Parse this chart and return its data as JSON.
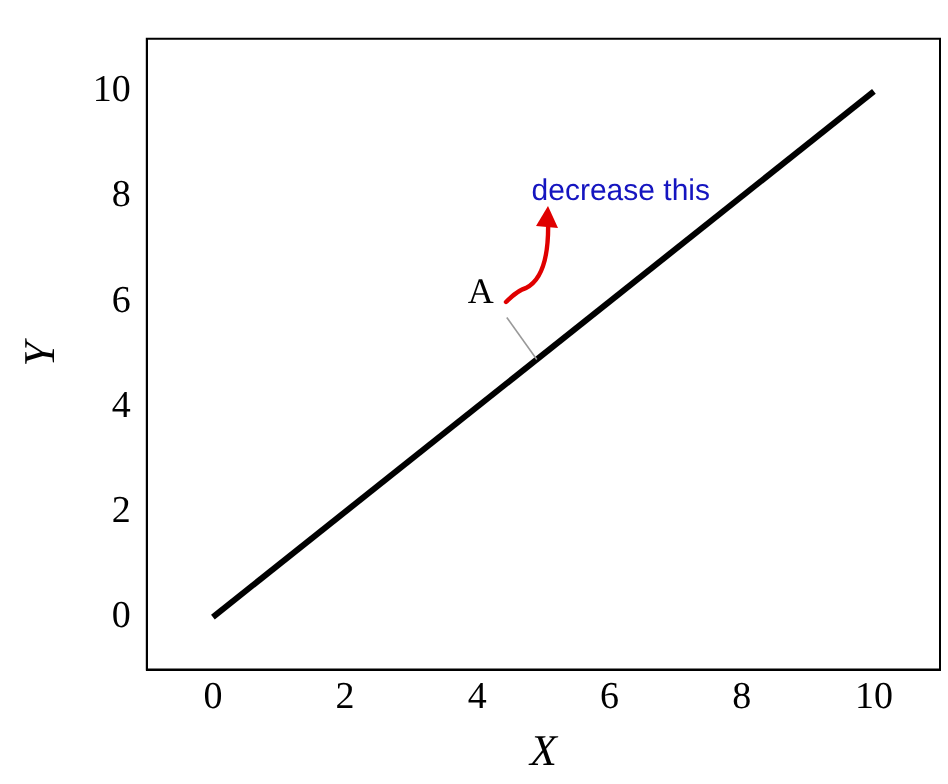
{
  "chart_data": {
    "type": "line",
    "xlabel": "X",
    "ylabel": "Y",
    "x": [
      0,
      10
    ],
    "series": [
      {
        "color": "#000000",
        "values": [
          0,
          10
        ]
      }
    ],
    "xlim": [
      -1,
      11
    ],
    "ylim": [
      -1,
      11
    ],
    "xticks": [
      0,
      2,
      4,
      6,
      8,
      10
    ],
    "yticks": [
      0,
      2,
      4,
      6,
      8,
      10
    ],
    "grid": false,
    "legend": false,
    "marker": "none",
    "annotations": [
      {
        "text": "A",
        "x": 4.9,
        "y": 4.9
      },
      "decrease this"
    ]
  }
}
